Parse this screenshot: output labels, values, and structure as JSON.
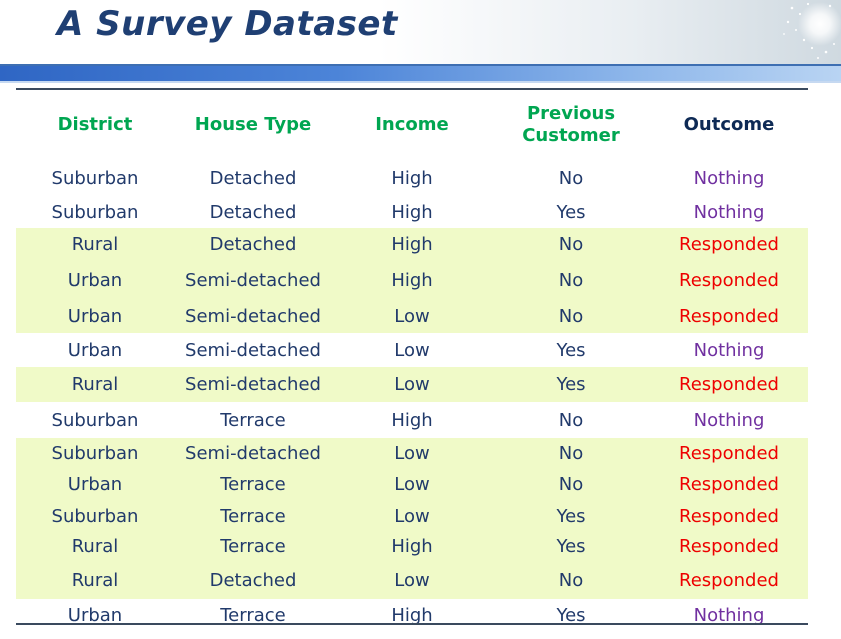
{
  "title": "A Survey Dataset",
  "colors": {
    "title": "#1f3f73",
    "header_text": "#00a651",
    "outcome_header": "#0e2a55",
    "cell_text": "#213a6b",
    "nothing": "#7030a0",
    "responded": "#ee0000",
    "highlight_row": "#f0fac8"
  },
  "table": {
    "headers": {
      "district": "District",
      "house_type": "House Type",
      "income": "Income",
      "previous_customer_line1": "Previous",
      "previous_customer_line2": "Customer",
      "outcome": "Outcome"
    },
    "rows": [
      {
        "district": "Suburban",
        "house_type": "Detached",
        "income": "High",
        "previous_customer": "No",
        "outcome": "Nothing",
        "highlighted": false
      },
      {
        "district": "Suburban",
        "house_type": "Detached",
        "income": "High",
        "previous_customer": "Yes",
        "outcome": "Nothing",
        "highlighted": false
      },
      {
        "district": "Rural",
        "house_type": "Detached",
        "income": "High",
        "previous_customer": "No",
        "outcome": "Responded",
        "highlighted": true
      },
      {
        "district": "Urban",
        "house_type": "Semi-detached",
        "income": "High",
        "previous_customer": "No",
        "outcome": "Responded",
        "highlighted": true
      },
      {
        "district": "Urban",
        "house_type": "Semi-detached",
        "income": "Low",
        "previous_customer": "No",
        "outcome": "Responded",
        "highlighted": true
      },
      {
        "district": "Urban",
        "house_type": "Semi-detached",
        "income": "Low",
        "previous_customer": "Yes",
        "outcome": "Nothing",
        "highlighted": false
      },
      {
        "district": "Rural",
        "house_type": "Semi-detached",
        "income": "Low",
        "previous_customer": "Yes",
        "outcome": "Responded",
        "highlighted": true
      },
      {
        "district": "Suburban",
        "house_type": "Terrace",
        "income": "High",
        "previous_customer": "No",
        "outcome": "Nothing",
        "highlighted": false
      },
      {
        "district": "Suburban",
        "house_type": "Semi-detached",
        "income": "Low",
        "previous_customer": "No",
        "outcome": "Responded",
        "highlighted": true
      },
      {
        "district": "Urban",
        "house_type": "Terrace",
        "income": "Low",
        "previous_customer": "No",
        "outcome": "Responded",
        "highlighted": true
      },
      {
        "district": "Suburban",
        "house_type": "Terrace",
        "income": "Low",
        "previous_customer": "Yes",
        "outcome": "Responded",
        "highlighted": true
      },
      {
        "district": "Rural",
        "house_type": "Terrace",
        "income": "High",
        "previous_customer": "Yes",
        "outcome": "Responded",
        "highlighted": true
      },
      {
        "district": "Rural",
        "house_type": "Detached",
        "income": "Low",
        "previous_customer": "No",
        "outcome": "Responded",
        "highlighted": true
      },
      {
        "district": "Urban",
        "house_type": "Terrace",
        "income": "High",
        "previous_customer": "Yes",
        "outcome": "Nothing",
        "highlighted": false
      }
    ]
  }
}
